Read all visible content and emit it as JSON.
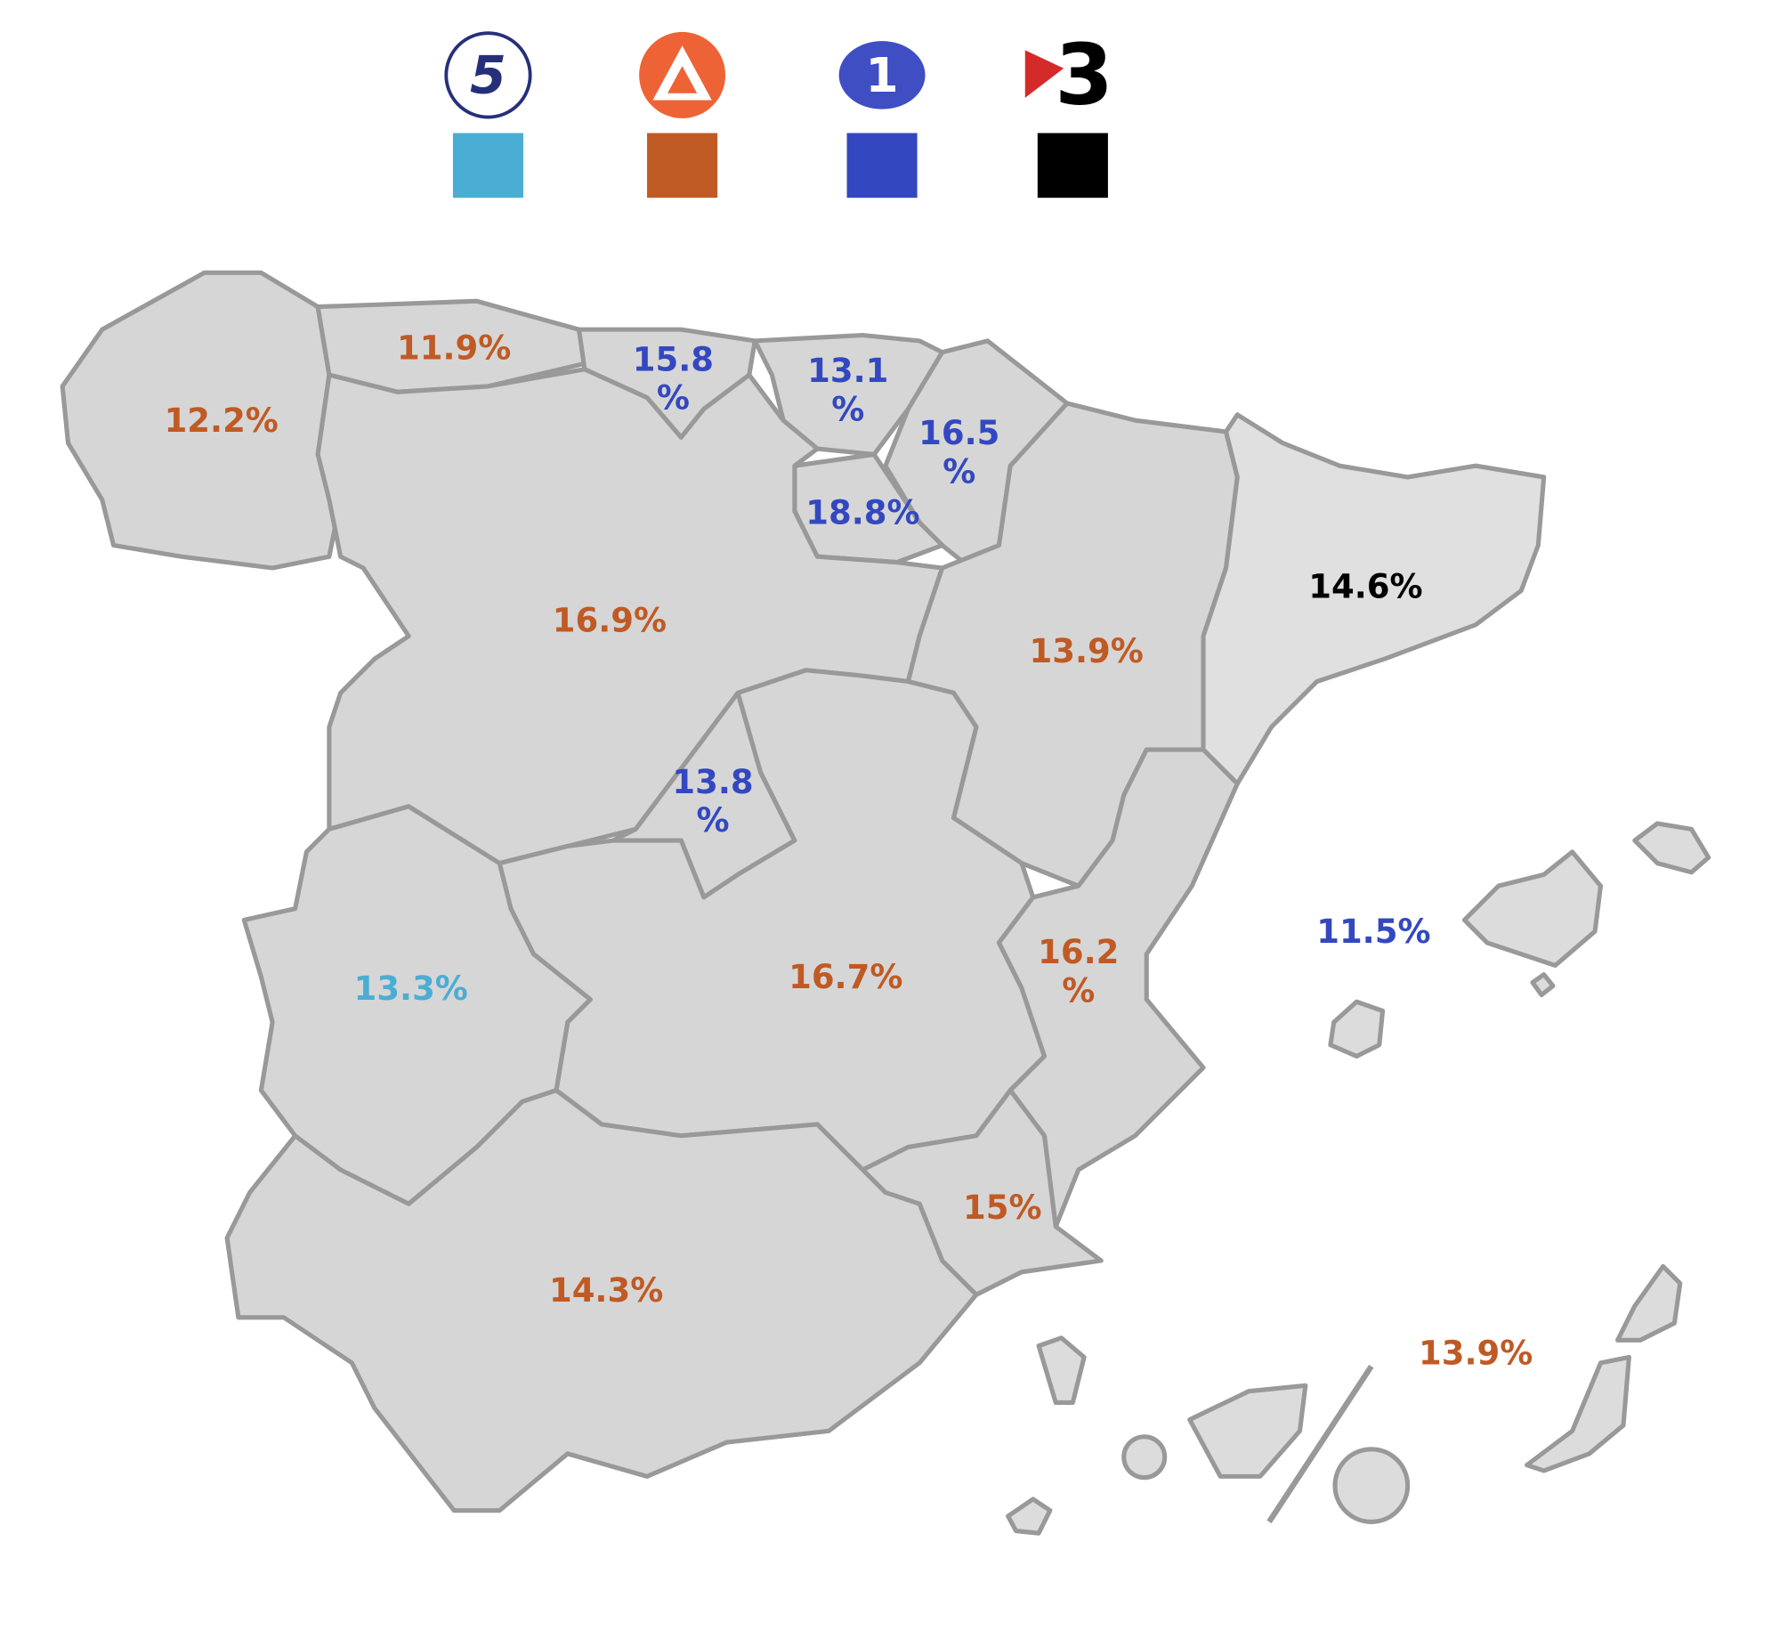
{
  "legend": [
    {
      "logo": "5",
      "color": "#4aaed4"
    },
    {
      "color": "#c05a24"
    },
    {
      "logo": "1",
      "color": "#3348c0"
    },
    {
      "logo": "3",
      "color": "#000000"
    }
  ],
  "regions": [
    {
      "label": [
        "12.2%"
      ],
      "color": "#c05a24"
    },
    {
      "label": [
        "11.9%"
      ],
      "color": "#c05a24"
    },
    {
      "label": [
        "15.8",
        "%"
      ],
      "color": "#3348c0"
    },
    {
      "label": [
        "13.1",
        "%"
      ],
      "color": "#3348c0"
    },
    {
      "label": [
        "16.5",
        "%"
      ],
      "color": "#3348c0"
    },
    {
      "label": [
        "18.8%"
      ],
      "color": "#3348c0"
    },
    {
      "label": [
        "16.9%"
      ],
      "color": "#c05a24"
    },
    {
      "label": [
        "14.6%"
      ],
      "color": "#000000"
    },
    {
      "label": [
        "13.9%"
      ],
      "color": "#c05a24"
    },
    {
      "label": [
        "13.8",
        "%"
      ],
      "color": "#3348c0"
    },
    {
      "label": [
        "16.2",
        "%"
      ],
      "color": "#c05a24"
    },
    {
      "label": [
        "11.5%"
      ],
      "color": "#3348c0"
    },
    {
      "label": [
        "13.3%"
      ],
      "color": "#4aaed4"
    },
    {
      "label": [
        "16.7%"
      ],
      "color": "#c05a24"
    },
    {
      "label": [
        "15%"
      ],
      "color": "#c05a24"
    },
    {
      "label": [
        "14.3%"
      ],
      "color": "#c05a24"
    },
    {
      "label": [
        "13.9%"
      ],
      "color": "#c05a24"
    }
  ]
}
